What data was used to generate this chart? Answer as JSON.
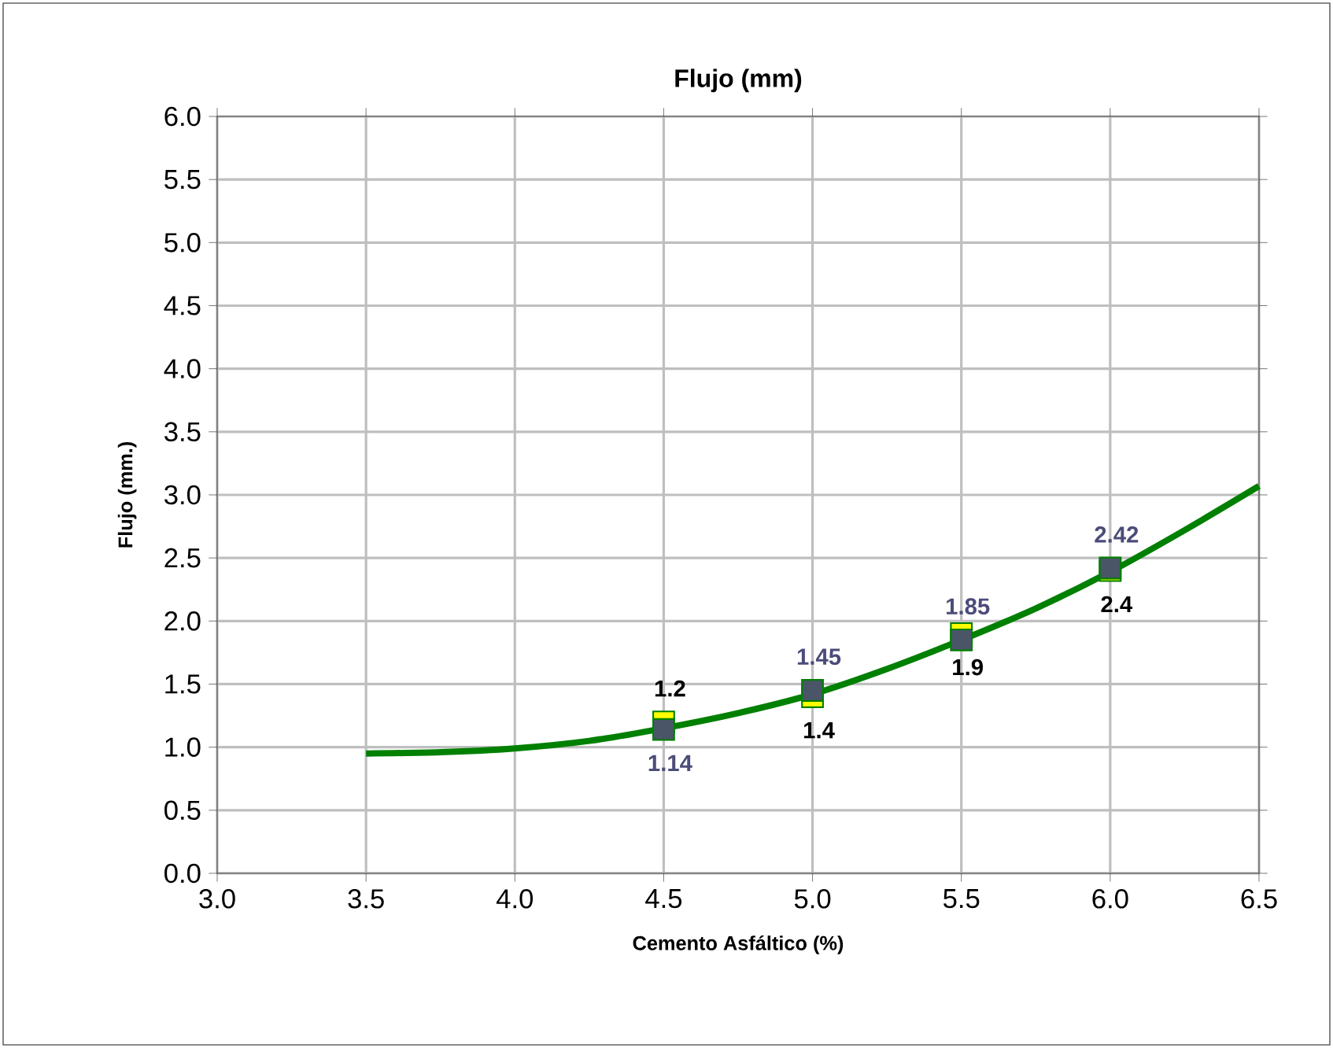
{
  "chart_data": {
    "type": "scatter",
    "title": "Flujo (mm)",
    "xlabel": "Cemento Asfáltico (%)",
    "ylabel": "Flujo (mm.)",
    "xlim": [
      3.0,
      6.5
    ],
    "ylim": [
      0.0,
      6.0
    ],
    "xticks": [
      {
        "value": 3.0,
        "label": "3.0"
      },
      {
        "value": 3.5,
        "label": "3.5"
      },
      {
        "value": 4.0,
        "label": "4.0"
      },
      {
        "value": 4.5,
        "label": "4.5"
      },
      {
        "value": 5.0,
        "label": "5.0"
      },
      {
        "value": 5.5,
        "label": "5.5"
      },
      {
        "value": 6.0,
        "label": "6.0"
      },
      {
        "value": 6.5,
        "label": "6.5"
      }
    ],
    "yticks": [
      {
        "value": 0.0,
        "label": "0.0"
      },
      {
        "value": 0.5,
        "label": "0.5"
      },
      {
        "value": 1.0,
        "label": "1.0"
      },
      {
        "value": 1.5,
        "label": "1.5"
      },
      {
        "value": 2.0,
        "label": "2.0"
      },
      {
        "value": 2.5,
        "label": "2.5"
      },
      {
        "value": 3.0,
        "label": "3.0"
      },
      {
        "value": 3.5,
        "label": "3.5"
      },
      {
        "value": 4.0,
        "label": "4.0"
      },
      {
        "value": 4.5,
        "label": "4.5"
      },
      {
        "value": 5.0,
        "label": "5.0"
      },
      {
        "value": 5.5,
        "label": "5.5"
      },
      {
        "value": 6.0,
        "label": "6.0"
      }
    ],
    "grid": true,
    "marker": "square",
    "series": [
      {
        "type": "line",
        "marker": "none",
        "color": "#008000",
        "x": [
          3.5,
          3.75,
          4.0,
          4.25,
          4.5,
          4.75,
          5.0,
          5.25,
          5.5,
          5.75,
          6.0,
          6.25,
          6.5
        ],
        "values": [
          0.95,
          0.96,
          0.99,
          1.05,
          1.15,
          1.27,
          1.42,
          1.62,
          1.85,
          2.1,
          2.39,
          2.72,
          3.07
        ]
      },
      {
        "color": "#ffff00",
        "x": [
          4.5,
          5.0,
          5.5,
          6.0
        ],
        "values": [
          1.2,
          1.4,
          1.9,
          2.4
        ],
        "value_labels": [
          "1.2",
          "1.4",
          "1.9",
          "2.4"
        ]
      },
      {
        "color": "#4a5568",
        "x": [
          4.5,
          5.0,
          5.5,
          6.0
        ],
        "values": [
          1.14,
          1.45,
          1.85,
          2.42
        ],
        "value_labels": [
          "1.14",
          "1.45",
          "1.85",
          "2.42"
        ]
      }
    ]
  }
}
